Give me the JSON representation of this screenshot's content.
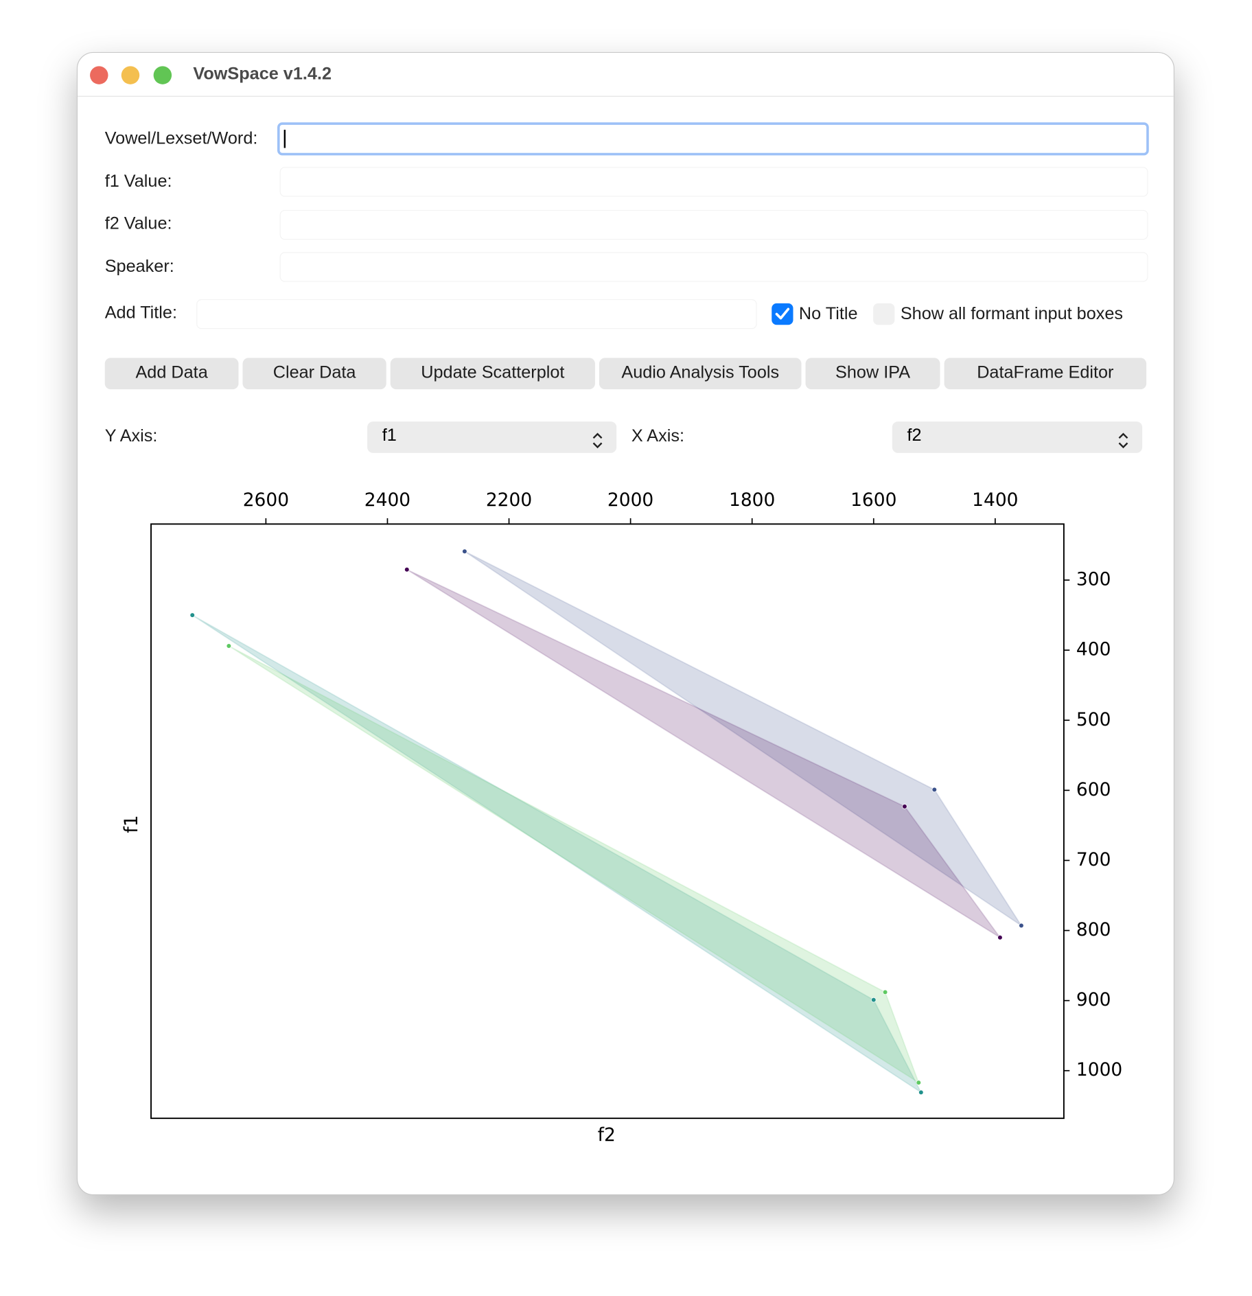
{
  "window": {
    "title": "VowSpace v1.4.2"
  },
  "form": {
    "labels": [
      "Vowel/Lexset/Word:",
      "f1 Value:",
      "f2 Value:",
      "Speaker:",
      "Add Title:"
    ],
    "checkboxes": [
      {
        "label": "No Title",
        "checked": true
      },
      {
        "label": "Show all formant input boxes",
        "checked": false
      }
    ]
  },
  "buttons": [
    "Add Data",
    "Clear Data",
    "Update Scatterplot",
    "Audio Analysis Tools",
    "Show IPA",
    "DataFrame Editor"
  ],
  "axis_selectors": [
    {
      "label": "Y Axis:",
      "value": "f1"
    },
    {
      "label": "X Axis:",
      "value": "f2"
    }
  ],
  "chart_data": {
    "type": "scatter",
    "xlabel": "f2",
    "ylabel": "f1",
    "xlim": [
      2789,
      1287
    ],
    "ylim": [
      1068,
      220
    ],
    "xticks": [
      2600,
      2400,
      2200,
      2000,
      1800,
      1600,
      1400
    ],
    "yticks": [
      300,
      400,
      500,
      600,
      700,
      800,
      900,
      1000
    ],
    "xaxis_side": "top",
    "yaxis_side": "right",
    "polygons": true,
    "series": [
      {
        "color": "#3b528b",
        "x": [
          2273,
          1500,
          1357
        ],
        "values": [
          259,
          599,
          793
        ]
      },
      {
        "color": "#440154",
        "x": [
          2368,
          1549,
          1392
        ],
        "values": [
          285,
          623,
          810
        ]
      },
      {
        "color": "#21918c",
        "x": [
          2721,
          1600,
          1522
        ],
        "values": [
          350,
          899,
          1031
        ]
      },
      {
        "color": "#5ec962",
        "x": [
          2661,
          1581,
          1526
        ],
        "values": [
          394,
          888,
          1017
        ]
      }
    ]
  }
}
